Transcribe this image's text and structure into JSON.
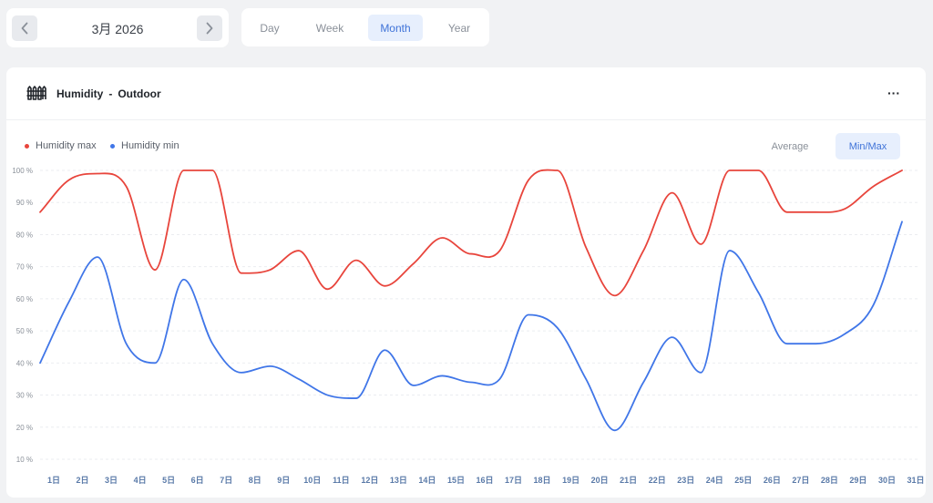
{
  "date_nav": {
    "label": "3月 2026",
    "prev_icon": "chevron-left-icon",
    "next_icon": "chevron-right-icon"
  },
  "period_tabs": [
    {
      "label": "Day",
      "active": false
    },
    {
      "label": "Week",
      "active": false
    },
    {
      "label": "Month",
      "active": true
    },
    {
      "label": "Year",
      "active": false
    }
  ],
  "panel": {
    "icon": "fence-icon",
    "title": "Humidity",
    "separator": "-",
    "subtitle": "Outdoor",
    "more_label": "···"
  },
  "mode_buttons": [
    {
      "label": "Average",
      "active": false
    },
    {
      "label": "Min/Max",
      "active": true
    }
  ],
  "colors": {
    "max": "#e8453c",
    "min": "#4076e8",
    "accent": "#3f73d8",
    "grid": "#ebedf0"
  },
  "chart_data": {
    "type": "line",
    "x": [
      "1日",
      "2日",
      "3日",
      "4日",
      "5日",
      "6日",
      "7日",
      "8日",
      "9日",
      "10日",
      "11日",
      "12日",
      "13日",
      "14日",
      "15日",
      "16日",
      "17日",
      "18日",
      "19日",
      "20日",
      "21日",
      "22日",
      "23日",
      "24日",
      "25日",
      "26日",
      "27日",
      "28日",
      "29日",
      "30日",
      "31日"
    ],
    "yticks": [
      "10 %",
      "20 %",
      "30 %",
      "40 %",
      "50 %",
      "60 %",
      "70 %",
      "80 %",
      "90 %",
      "100 %"
    ],
    "ylim": [
      10,
      100
    ],
    "series": [
      {
        "name": "Humidity max",
        "color": "#e8453c",
        "values": [
          87,
          97,
          99,
          95,
          69,
          100,
          100,
          68,
          69,
          75,
          63,
          72,
          64,
          71,
          79,
          74,
          75,
          97,
          100,
          76,
          61,
          75,
          93,
          77,
          100,
          100,
          87,
          87,
          88,
          95,
          100
        ]
      },
      {
        "name": "Humidity min",
        "color": "#4076e8",
        "values": [
          40,
          59,
          73,
          46,
          40,
          66,
          46,
          37,
          39,
          35,
          30,
          29,
          44,
          33,
          36,
          34,
          35,
          55,
          51,
          35,
          19,
          34,
          48,
          37,
          75,
          62,
          46,
          46,
          49,
          58,
          84
        ]
      }
    ],
    "grid": true,
    "legend": "top-left"
  }
}
